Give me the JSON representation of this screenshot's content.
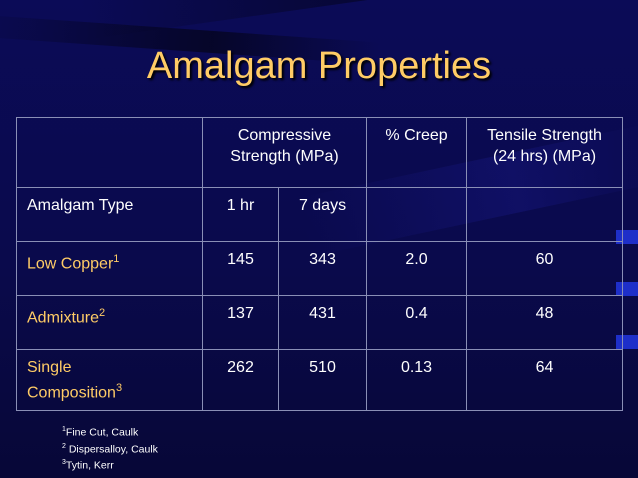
{
  "slide": {
    "title": "Amalgam Properties",
    "headers": {
      "compressive": "Compressive Strength (MPa)",
      "creep": "% Creep",
      "tensile": "Tensile Strength (24 hrs) (MPa)",
      "type": "Amalgam Type",
      "hr1": "1 hr",
      "days7": "7 days"
    },
    "rows": [
      {
        "name": "Low Copper",
        "sup": "1",
        "hr1": "145",
        "days7": "343",
        "creep": "2.0",
        "tensile": "60"
      },
      {
        "name": "Admixture",
        "sup": "2",
        "hr1": "137",
        "days7": "431",
        "creep": "0.4",
        "tensile": "48"
      },
      {
        "name_line1": "Single",
        "name_line2": "Composition",
        "sup": "3",
        "hr1": "262",
        "days7": "510",
        "creep": "0.13",
        "tensile": "64"
      }
    ],
    "footnotes": [
      {
        "sup": "1",
        "text": "Fine Cut, Caulk"
      },
      {
        "sup": "2",
        "text": " Dispersalloy, Caulk"
      },
      {
        "sup": "3",
        "text": "Tytin, Kerr"
      }
    ]
  },
  "colors": {
    "background": "#0b0b57",
    "title": "#ffcc66",
    "text": "#ffffff",
    "highlight_text": "#ffcc66",
    "grid": "#8a8fb6",
    "edge_accent": "#1e2fc9"
  }
}
